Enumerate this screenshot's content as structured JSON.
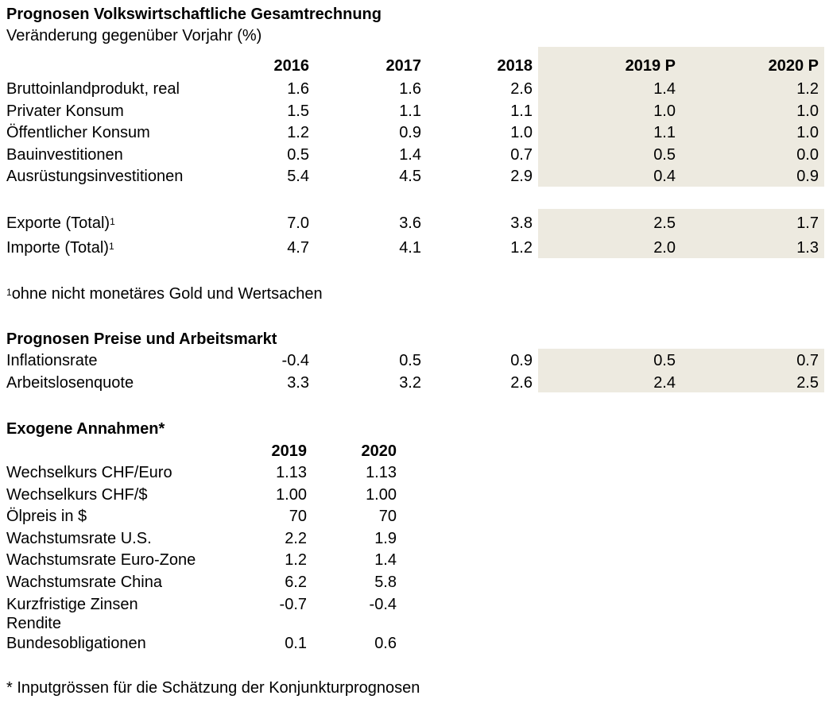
{
  "gdp": {
    "title": "Prognosen Volkswirtschaftliche Gesamtrechnung",
    "subtitle": "Veränderung gegenüber Vorjahr (%)",
    "columns": [
      "2016",
      "2017",
      "2018",
      "2019 P",
      "2020 P"
    ],
    "rows": [
      {
        "label": "Bruttoinlandprodukt, real",
        "values": [
          "1.6",
          "1.6",
          "2.6",
          "1.4",
          "1.2"
        ]
      },
      {
        "label": "Privater Konsum",
        "values": [
          "1.5",
          "1.1",
          "1.1",
          "1.0",
          "1.0"
        ]
      },
      {
        "label": "Öffentlicher Konsum",
        "values": [
          "1.2",
          "0.9",
          "1.0",
          "1.1",
          "1.0"
        ]
      },
      {
        "label": "Bauinvestitionen",
        "values": [
          "0.5",
          "1.4",
          "0.7",
          "0.5",
          "0.0"
        ]
      },
      {
        "label": "Ausrüstungsinvestitionen",
        "values": [
          "5.4",
          "4.5",
          "2.9",
          "0.4",
          "0.9"
        ]
      }
    ],
    "trade_rows": [
      {
        "label": "Exporte (Total)",
        "sup": "1",
        "values": [
          "7.0",
          "3.6",
          "3.8",
          "2.5",
          "1.7"
        ]
      },
      {
        "label": "Importe (Total)",
        "sup": "1",
        "values": [
          "4.7",
          "4.1",
          "1.2",
          "2.0",
          "1.3"
        ]
      }
    ],
    "footnote_mark": "1",
    "footnote": "ohne nicht monetäres Gold und Wertsachen"
  },
  "prices": {
    "title": "Prognosen Preise und Arbeitsmarkt",
    "rows": [
      {
        "label": "Inflationsrate",
        "values": [
          "-0.4",
          "0.5",
          "0.9",
          "0.5",
          "0.7"
        ]
      },
      {
        "label": "Arbeitslosenquote",
        "values": [
          "3.3",
          "3.2",
          "2.6",
          "2.4",
          "2.5"
        ]
      }
    ]
  },
  "assumptions": {
    "title": "Exogene Annahmen*",
    "columns": [
      "2019",
      "2020"
    ],
    "rows": [
      {
        "label": "Wechselkurs CHF/Euro",
        "values": [
          "1.13",
          "1.13"
        ]
      },
      {
        "label": "Wechselkurs CHF/$",
        "values": [
          "1.00",
          "1.00"
        ]
      },
      {
        "label": "Ölpreis in $",
        "values": [
          "70",
          "70"
        ]
      },
      {
        "label": "Wachstumsrate U.S.",
        "values": [
          "2.2",
          "1.9"
        ]
      },
      {
        "label": "Wachstumsrate Euro-Zone",
        "values": [
          "1.2",
          "1.4"
        ]
      },
      {
        "label": "Wachstumsrate China",
        "values": [
          "6.2",
          "5.8"
        ]
      },
      {
        "label": "Kurzfristige Zinsen",
        "values": [
          "-0.7",
          "-0.4"
        ]
      },
      {
        "label": "Rendite",
        "label2": "Bundesobligationen",
        "values": [
          "0.1",
          "0.6"
        ]
      }
    ],
    "footnote": "* Inputgrössen für die Schätzung der Konjunkturprognosen"
  }
}
